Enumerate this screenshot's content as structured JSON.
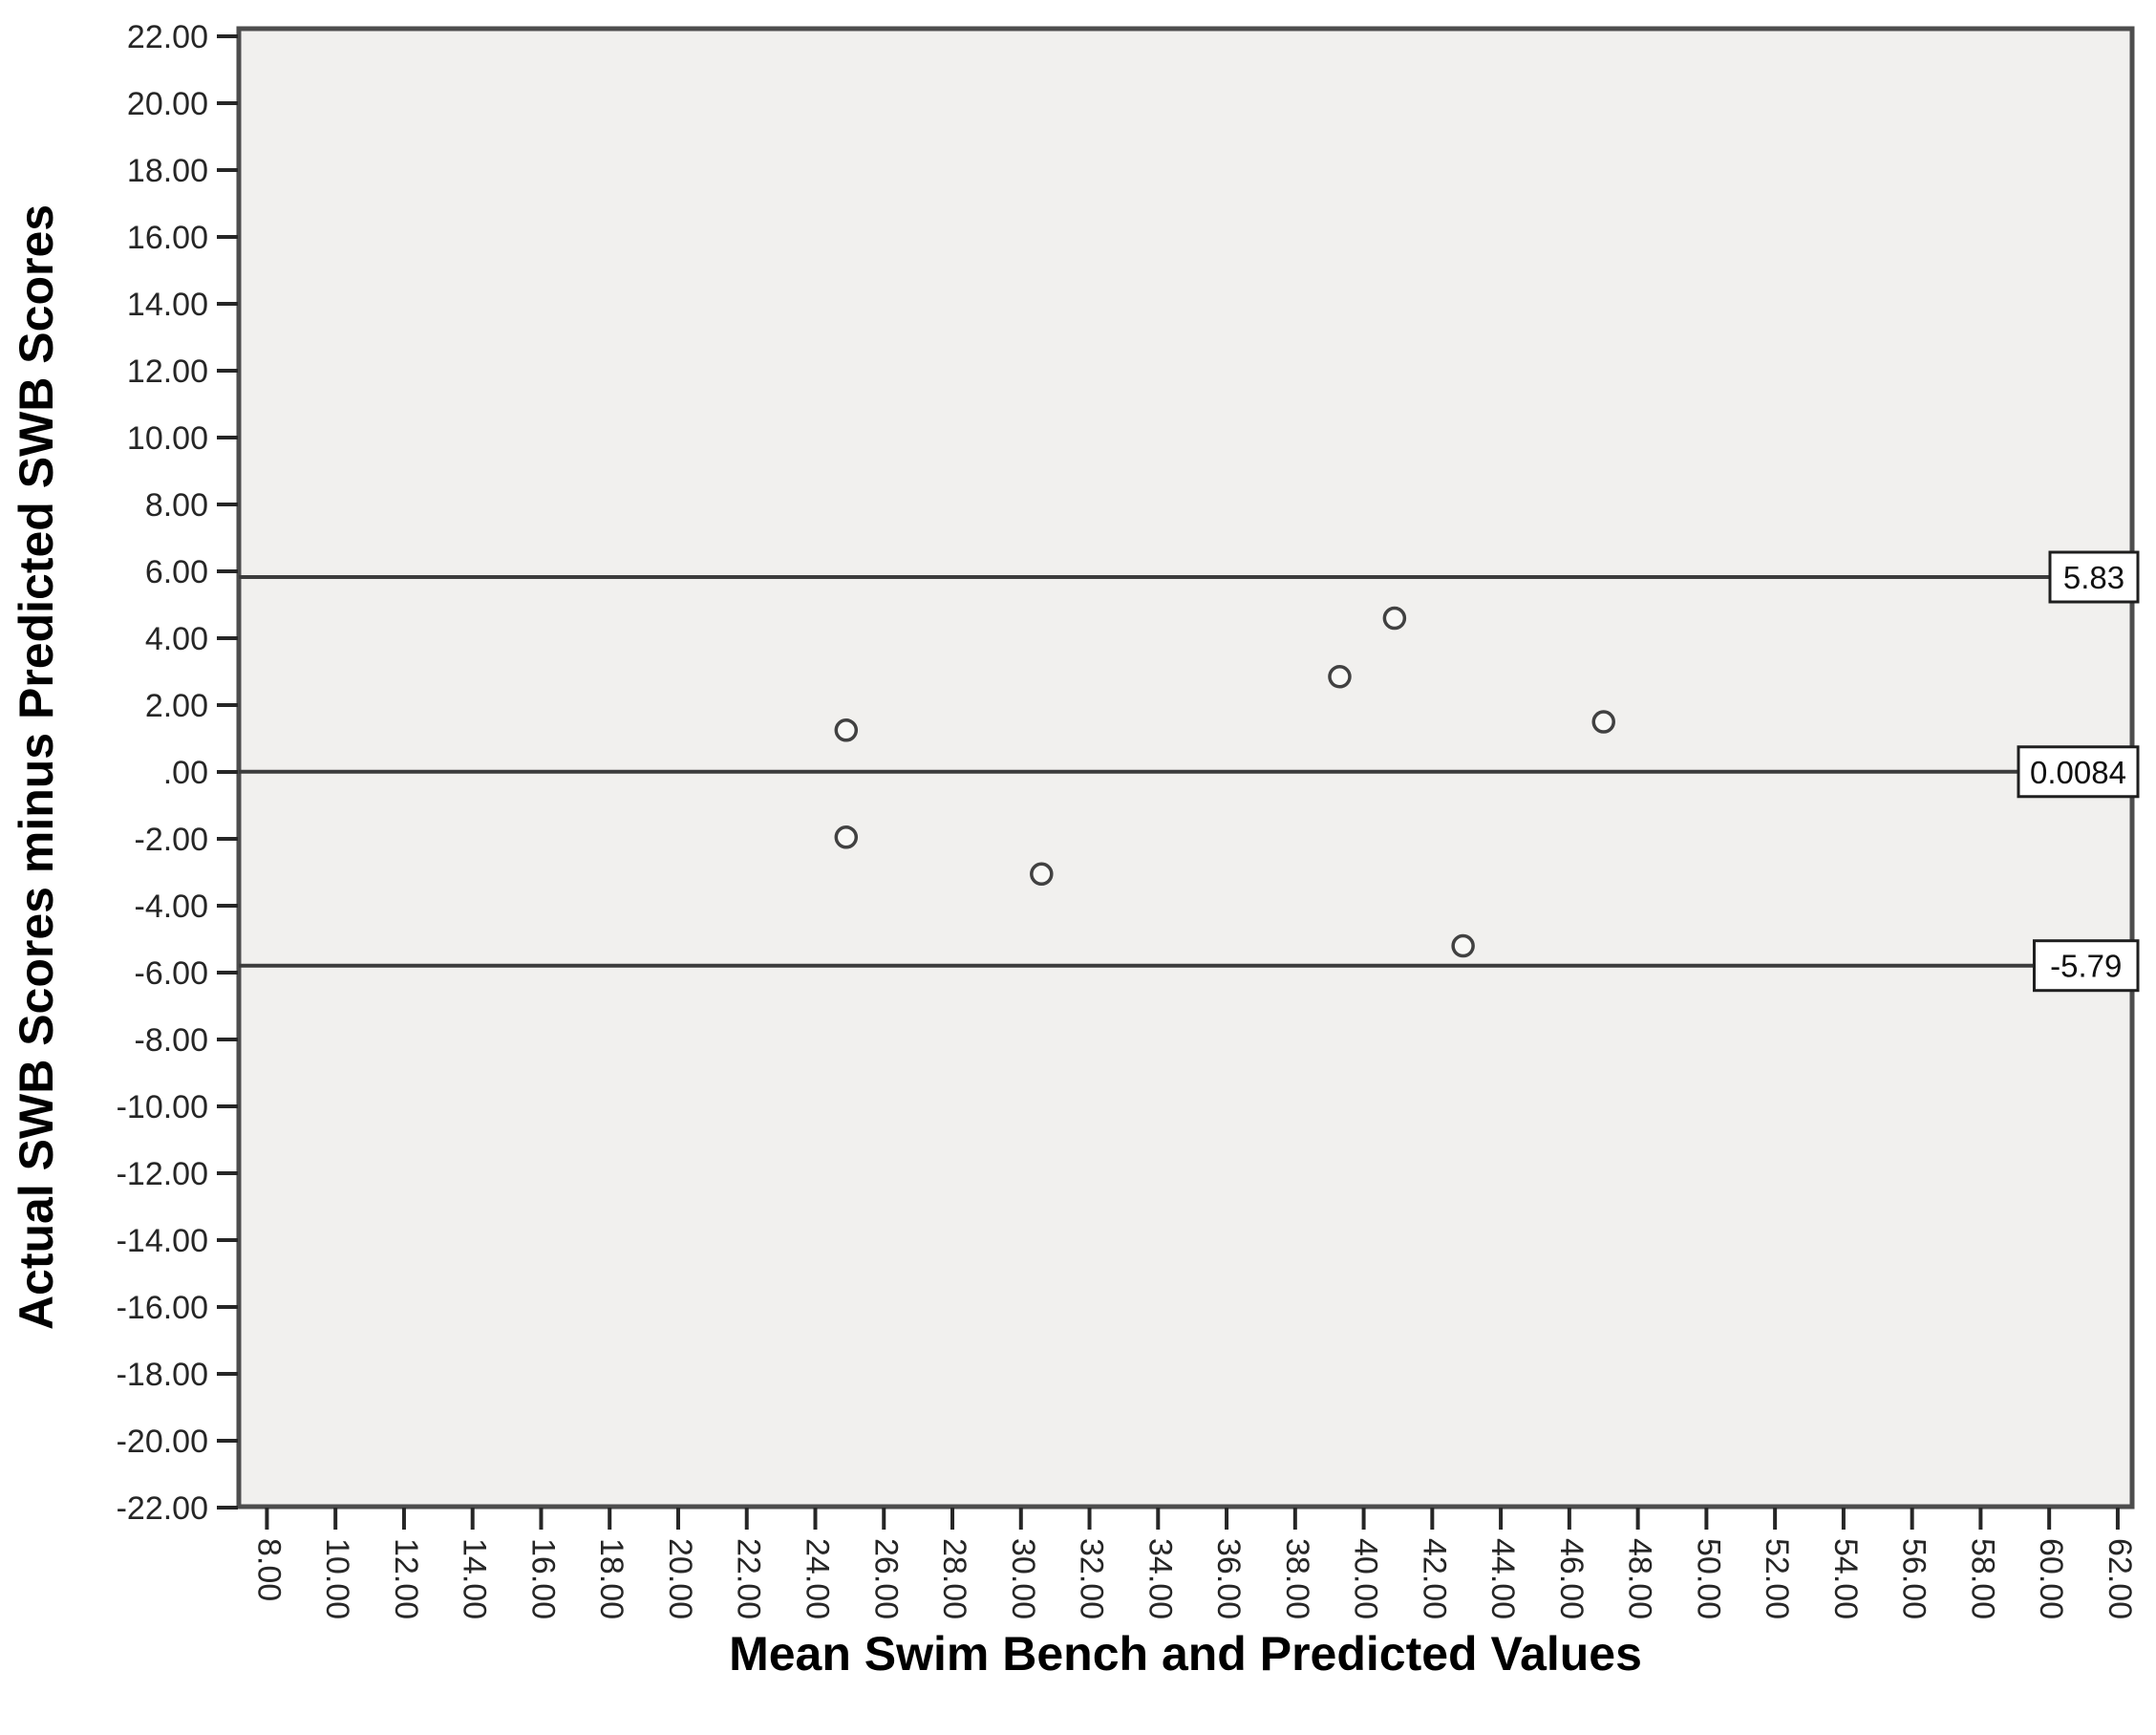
{
  "chart_data": {
    "type": "scatter",
    "title": "",
    "xlabel": "Mean Swim Bench and Predicted Values",
    "ylabel": "Actual SWB Scores minus Predicted SWB Scores",
    "xlim": [
      7.18,
      62.42
    ],
    "ylim": [
      -21.97,
      22.23
    ],
    "grid": false,
    "legend": "none",
    "marker": "open-circle",
    "x_ticks": [
      {
        "v": 8,
        "label": "8.00"
      },
      {
        "v": 10,
        "label": "10.00"
      },
      {
        "v": 12,
        "label": "12.00"
      },
      {
        "v": 14,
        "label": "14.00"
      },
      {
        "v": 16,
        "label": "16.00"
      },
      {
        "v": 18,
        "label": "18.00"
      },
      {
        "v": 20,
        "label": "20.00"
      },
      {
        "v": 22,
        "label": "22.00"
      },
      {
        "v": 24,
        "label": "24.00"
      },
      {
        "v": 26,
        "label": "26.00"
      },
      {
        "v": 28,
        "label": "28.00"
      },
      {
        "v": 30,
        "label": "30.00"
      },
      {
        "v": 32,
        "label": "32.00"
      },
      {
        "v": 34,
        "label": "34.00"
      },
      {
        "v": 36,
        "label": "36.00"
      },
      {
        "v": 38,
        "label": "38.00"
      },
      {
        "v": 40,
        "label": "40.00"
      },
      {
        "v": 42,
        "label": "42.00"
      },
      {
        "v": 44,
        "label": "44.00"
      },
      {
        "v": 46,
        "label": "46.00"
      },
      {
        "v": 48,
        "label": "48.00"
      },
      {
        "v": 50,
        "label": "50.00"
      },
      {
        "v": 52,
        "label": "52.00"
      },
      {
        "v": 54,
        "label": "54.00"
      },
      {
        "v": 56,
        "label": "56.00"
      },
      {
        "v": 58,
        "label": "58.00"
      },
      {
        "v": 60,
        "label": "60.00"
      },
      {
        "v": 62,
        "label": "62.00"
      }
    ],
    "y_ticks": [
      {
        "v": 22,
        "label": "22.00"
      },
      {
        "v": 20,
        "label": "20.00"
      },
      {
        "v": 18,
        "label": "18.00"
      },
      {
        "v": 16,
        "label": "16.00"
      },
      {
        "v": 14,
        "label": "14.00"
      },
      {
        "v": 12,
        "label": "12.00"
      },
      {
        "v": 10,
        "label": "10.00"
      },
      {
        "v": 8,
        "label": "8.00"
      },
      {
        "v": 6,
        "label": "6.00"
      },
      {
        "v": 4,
        "label": "4.00"
      },
      {
        "v": 2,
        "label": "2.00"
      },
      {
        "v": 0,
        "label": ".00"
      },
      {
        "v": -2,
        "label": "-2.00"
      },
      {
        "v": -4,
        "label": "-4.00"
      },
      {
        "v": -6,
        "label": "-6.00"
      },
      {
        "v": -8,
        "label": "-8.00"
      },
      {
        "v": -10,
        "label": "-10.00"
      },
      {
        "v": -12,
        "label": "-12.00"
      },
      {
        "v": -14,
        "label": "-14.00"
      },
      {
        "v": -16,
        "label": "-16.00"
      },
      {
        "v": -18,
        "label": "-18.00"
      },
      {
        "v": -20,
        "label": "-20.00"
      },
      {
        "v": -22,
        "label": "-22.00"
      }
    ],
    "points": [
      {
        "x": 24.9,
        "y": 1.25
      },
      {
        "x": 24.9,
        "y": -1.95
      },
      {
        "x": 30.6,
        "y": -3.05
      },
      {
        "x": 39.3,
        "y": 2.85
      },
      {
        "x": 40.9,
        "y": 4.6
      },
      {
        "x": 42.9,
        "y": -5.2
      },
      {
        "x": 47.0,
        "y": 1.5
      }
    ],
    "reference_lines": [
      {
        "value": 5.83,
        "label": "5.83"
      },
      {
        "value": 0.0084,
        "label": "0.0084"
      },
      {
        "value": -5.79,
        "label": "-5.79"
      }
    ]
  },
  "styles": {
    "page_bg": "#ffffff",
    "plot_bg": "#f1f0ee",
    "plot_border": "#4d4d4d",
    "ref_line": "#3c3c3c",
    "tick_color": "#262626",
    "tick_text": "#262626",
    "marker_stroke": "#414141",
    "marker_fill": "#f8f8f6",
    "ref_box_fill": "#ffffff",
    "ref_box_border": "#1f1f1f"
  }
}
